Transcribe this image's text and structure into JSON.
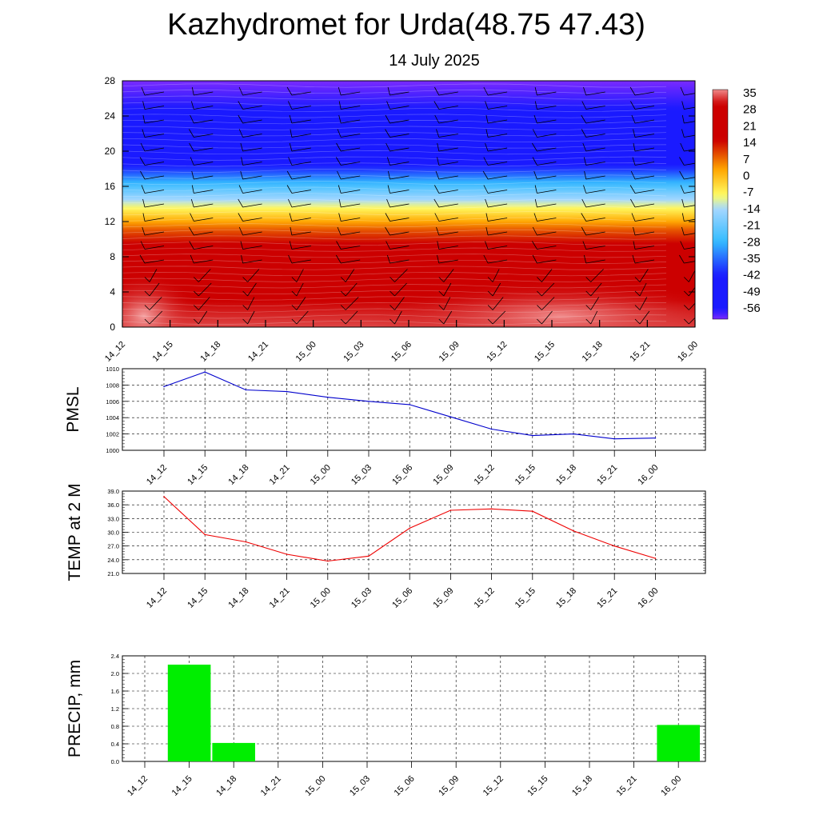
{
  "title": "Kazhydromet for Urda(48.75 47.43)",
  "subtitle": "14 July 2025",
  "time_labels": [
    "14_12",
    "14_15",
    "14_18",
    "14_21",
    "15_00",
    "15_03",
    "15_06",
    "15_09",
    "15_12",
    "15_15",
    "15_18",
    "15_21",
    "16_00"
  ],
  "chart_data": [
    {
      "type": "heatmap",
      "name_hint": "temperature vertical cross-section",
      "x": [
        "14_12",
        "14_15",
        "14_18",
        "14_21",
        "15_00",
        "15_03",
        "15_06",
        "15_09",
        "15_12",
        "15_15",
        "15_18",
        "15_21",
        "16_00"
      ],
      "ylim": [
        0,
        28
      ],
      "yticks": [
        "0",
        "4",
        "8",
        "12",
        "16",
        "20",
        "24",
        "28"
      ],
      "colorbar_ticks": [
        "35",
        "28",
        "21",
        "14",
        "7",
        "0",
        "-7",
        "-14",
        "-21",
        "-28",
        "-35",
        "-42",
        "-49",
        "-56"
      ],
      "colors": {
        "hot": "#f08a8a",
        "red": "#cc0000",
        "orange": "#ffa500",
        "yellow": "#ffff66",
        "lightblue": "#a8d8ff",
        "cyan": "#33bbff",
        "blue": "#1a1aff",
        "violet": "#7a2aff"
      },
      "profile_levels": [
        0,
        2,
        4,
        8,
        11,
        13.5,
        16,
        18,
        20,
        24,
        28
      ],
      "profile_temps": [
        32,
        30,
        28,
        20,
        8,
        -8,
        -25,
        -40,
        -50,
        -55,
        -60
      ]
    },
    {
      "type": "line",
      "ylabel": "PMSL",
      "categories": [
        "14_12",
        "14_15",
        "14_18",
        "14_21",
        "15_00",
        "15_03",
        "15_06",
        "15_09",
        "15_12",
        "15_15",
        "15_18",
        "15_21",
        "16_00"
      ],
      "values": [
        1007.8,
        1009.6,
        1007.4,
        1007.2,
        1006.5,
        1006.0,
        1005.6,
        1004.1,
        1002.6,
        1001.8,
        1002.0,
        1001.4,
        1001.5
      ],
      "ylim": [
        1000,
        1010
      ],
      "yticks": [
        "1000",
        "1002",
        "1004",
        "1006",
        "1008",
        "1010"
      ],
      "color": "#0000cc",
      "grid": true
    },
    {
      "type": "line",
      "ylabel": "TEMP at 2 M",
      "categories": [
        "14_12",
        "14_15",
        "14_18",
        "14_21",
        "15_00",
        "15_03",
        "15_06",
        "15_09",
        "15_12",
        "15_15",
        "15_18",
        "15_21",
        "16_00"
      ],
      "values": [
        37.8,
        29.5,
        27.9,
        25.2,
        23.7,
        24.8,
        30.9,
        34.8,
        35.1,
        34.6,
        30.3,
        27.0,
        24.3
      ],
      "ylim": [
        21,
        39
      ],
      "yticks": [
        "21.0",
        "24.0",
        "27.0",
        "30.0",
        "33.0",
        "36.0",
        "39.0"
      ],
      "color": "#ee0000",
      "grid": true
    },
    {
      "type": "bar",
      "ylabel": "PRECIP, mm",
      "categories": [
        "14_12",
        "14_15",
        "14_18",
        "14_21",
        "15_00",
        "15_03",
        "15_06",
        "15_09",
        "15_12",
        "15_15",
        "15_18",
        "15_21",
        "16_00"
      ],
      "values": [
        0,
        2.2,
        0.42,
        0,
        0,
        0,
        0,
        0,
        0,
        0,
        0,
        0,
        0.83
      ],
      "ylim": [
        0,
        2.4
      ],
      "yticks": [
        "0.0",
        "0.4",
        "0.8",
        "1.2",
        "1.6",
        "2.0",
        "2.4"
      ],
      "color": "#00ee00",
      "grid": true
    }
  ]
}
